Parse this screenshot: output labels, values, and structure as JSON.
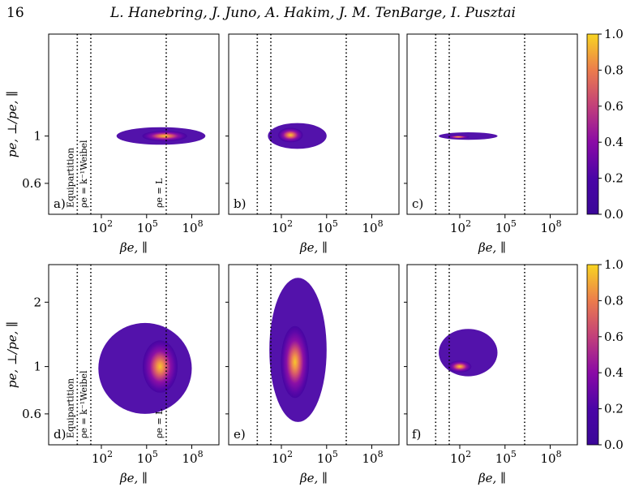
{
  "header": {
    "page_number": "16",
    "authors": "L. Hanebring, J. Juno, A. Hakim, J. M. TenBarge, I. Pusztai"
  },
  "chart_data": {
    "type": "heatmap",
    "xscale": "log",
    "yscale": "log",
    "xlabel": "βe, ∥",
    "ylabel": "pe, ⊥/pe, ∥",
    "xlim_log10": [
      -1.5,
      9.8
    ],
    "x_ticks": [
      {
        "exp": 2,
        "label": "10",
        "sup": "2"
      },
      {
        "exp": 5,
        "label": "10",
        "sup": "5"
      },
      {
        "exp": 8,
        "label": "10",
        "sup": "8"
      }
    ],
    "colorbar": {
      "range": [
        0,
        1
      ],
      "ticks": [
        "0.0",
        "0.2",
        "0.4",
        "0.6",
        "0.8",
        "1.0"
      ],
      "colormap": "plasma"
    },
    "reference_lines": [
      {
        "name": "Equipartition",
        "x_log10": 0.4
      },
      {
        "name": "ρe = k⁻¹Weibel",
        "x_log10": 1.3
      },
      {
        "name": "ρe = L",
        "x_log10": 6.3
      }
    ],
    "rows": [
      {
        "ylim": [
          0.43,
          3.0
        ],
        "y_ticks": [
          {
            "value": 0.6,
            "label": "0.6"
          },
          {
            "value": 1,
            "label": "1"
          }
        ],
        "panels": [
          {
            "label": "a)",
            "show_ref_labels": true,
            "blobs": [
              {
                "x_log10": 6.2,
                "y": 1.0,
                "x_min": 3.0,
                "x_max": 8.9,
                "y_min": 0.91,
                "y_max": 1.1
              }
            ]
          },
          {
            "label": "b)",
            "show_ref_labels": false,
            "blobs": [
              {
                "x_log10": 2.6,
                "y": 1.01,
                "x_min": 1.1,
                "x_max": 5.0,
                "y_min": 0.87,
                "y_max": 1.15
              }
            ]
          },
          {
            "label": "c)",
            "show_ref_labels": false,
            "blobs": [
              {
                "x_log10": 1.9,
                "y": 0.99,
                "x_min": 0.6,
                "x_max": 4.5,
                "y_min": 0.96,
                "y_max": 1.04
              }
            ]
          }
        ]
      },
      {
        "ylim": [
          0.43,
          3.0
        ],
        "y_ticks": [
          {
            "value": 0.6,
            "label": "0.6"
          },
          {
            "value": 1,
            "label": "1"
          },
          {
            "value": 2,
            "label": "2"
          }
        ],
        "panels": [
          {
            "label": "d)",
            "show_ref_labels": true,
            "blobs": [
              {
                "x_log10": 5.9,
                "y": 1.0,
                "x_min": 1.8,
                "x_max": 8.0,
                "y_min": 0.6,
                "y_max": 1.6
              }
            ]
          },
          {
            "label": "e)",
            "show_ref_labels": false,
            "blobs": [
              {
                "x_log10": 2.9,
                "y": 1.05,
                "x_min": 1.2,
                "x_max": 5.0,
                "y_min": 0.55,
                "y_max": 2.6
              }
            ]
          },
          {
            "label": "f)",
            "show_ref_labels": false,
            "blobs": [
              {
                "x_log10": 2.0,
                "y": 1.0,
                "x_min": 0.6,
                "x_max": 4.5,
                "y_min": 0.9,
                "y_max": 1.5
              }
            ]
          }
        ]
      }
    ]
  }
}
